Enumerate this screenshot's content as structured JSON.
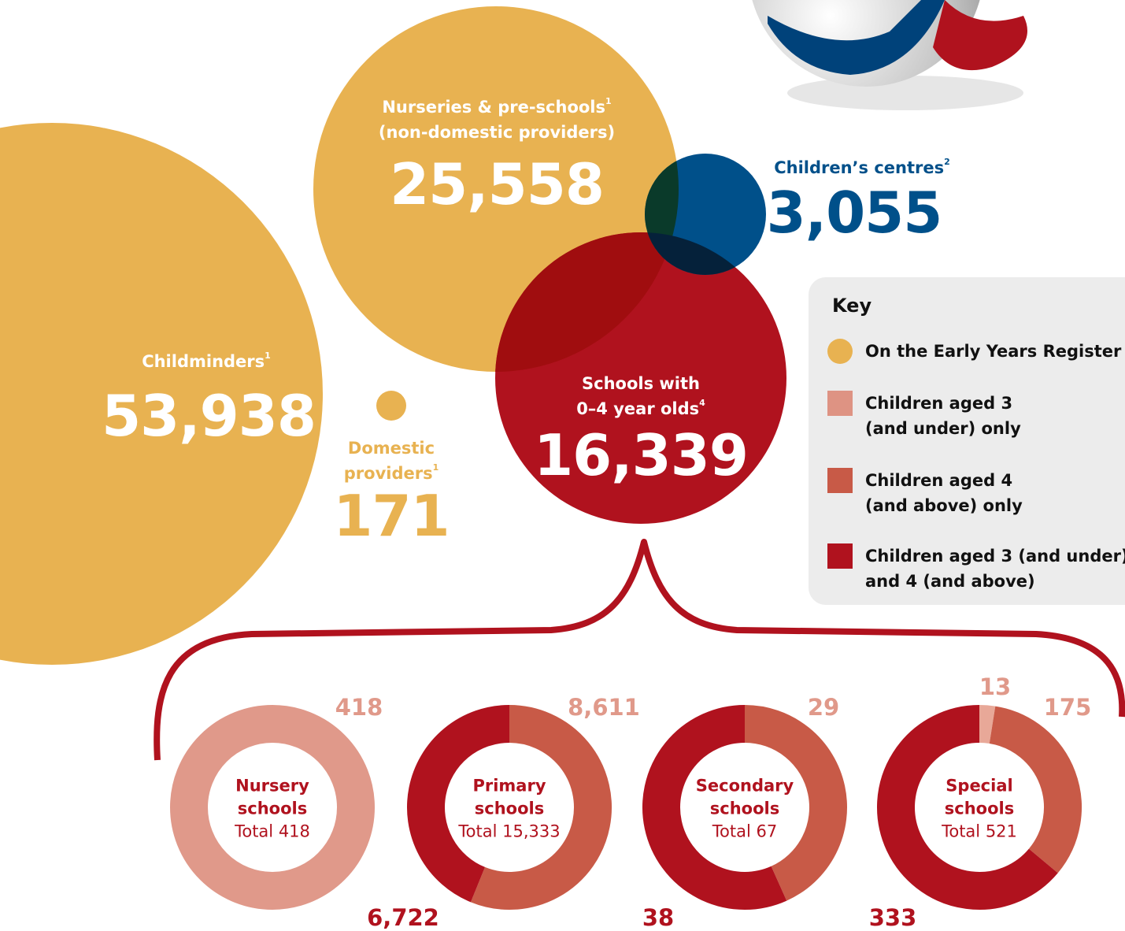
{
  "bubbles": {
    "childminders": {
      "label": "Childminders",
      "sup": "1",
      "value": "53,938"
    },
    "nurseries": {
      "label": "Nurseries & pre-schools",
      "sup": "1",
      "label_2": "(non-domestic providers)",
      "value": "25,558"
    },
    "centres": {
      "label": "Children’s centres",
      "sup": "2",
      "value": "3,055"
    },
    "schools": {
      "label": "Schools with",
      "label_2": "0–4 year olds",
      "sup": "4",
      "value": "16,339"
    },
    "domestic": {
      "label": "Domestic",
      "label_2": "providers",
      "sup": "1",
      "value": "171"
    }
  },
  "key": {
    "title": "Key",
    "items": [
      {
        "label": "On the Early Years Register",
        "color": "#e8b251",
        "shape": "circle"
      },
      {
        "label": "Children aged 3 (and under) only",
        "color": "#de9383",
        "shape": "square"
      },
      {
        "label": "Children aged 4 (and above) only",
        "color": "#c85a47",
        "shape": "square"
      },
      {
        "label": "Children aged 3 (and under) and 4 (and above)",
        "color": "#b0121e",
        "shape": "square"
      }
    ]
  },
  "chart_data": [
    {
      "type": "donut",
      "title": "Nursery schools",
      "subtitle": "Total 418",
      "values": [
        418
      ],
      "value_labels": [
        "418"
      ],
      "colors": [
        "#e0998a"
      ],
      "label_colors": [
        "#e0998a"
      ]
    },
    {
      "type": "donut",
      "title": "Primary schools",
      "subtitle": "Total 15,333",
      "values": [
        8611,
        6722
      ],
      "value_labels": [
        "8,611",
        "6,722"
      ],
      "colors": [
        "#c85a47",
        "#b0121e"
      ],
      "label_colors": [
        "#e0998a",
        "#b0121e"
      ]
    },
    {
      "type": "donut",
      "title": "Secondary schools",
      "subtitle": "Total 67",
      "values": [
        29,
        38
      ],
      "value_labels": [
        "29",
        "38"
      ],
      "colors": [
        "#c85a47",
        "#b0121e"
      ],
      "label_colors": [
        "#e0998a",
        "#b0121e"
      ]
    },
    {
      "type": "donut",
      "title": "Special schools",
      "subtitle": "Total 521",
      "values": [
        13,
        175,
        333
      ],
      "value_labels": [
        "13",
        "175",
        "333"
      ],
      "colors": [
        "#e8a898",
        "#c85a47",
        "#b0121e"
      ],
      "label_colors": [
        "#e0998a",
        "#e0998a",
        "#b0121e"
      ]
    }
  ]
}
